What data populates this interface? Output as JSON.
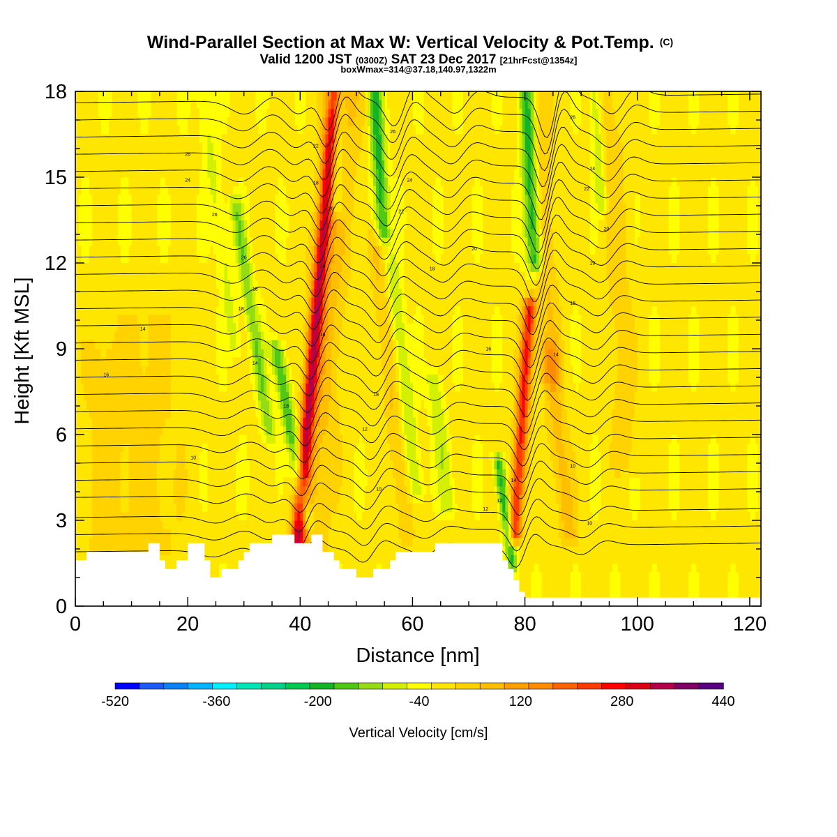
{
  "chart_data": {
    "type": "heatmap",
    "title": "Wind-Parallel Section at Max W: Vertical Velocity & Pot.Temp.",
    "title_mark": "(C)",
    "subtitle_main_a": "Valid 1200 JST ",
    "subtitle_small_a": "(0300Z)",
    "subtitle_main_b": " SAT 23 Dec 2017 ",
    "subtitle_small_b": "[21hrFcst@1354z]",
    "box_info": "boxWmax=314@37.18,140.97,1322m",
    "xlabel": "Distance [nm]",
    "ylabel": "Height [Kft MSL]",
    "xlim": [
      0,
      122
    ],
    "ylim": [
      0,
      18
    ],
    "x_ticks": [
      "0",
      "20",
      "40",
      "60",
      "80",
      "100",
      "120"
    ],
    "y_ticks": [
      "0",
      "3",
      "6",
      "9",
      "12",
      "15",
      "18"
    ],
    "colorbar": {
      "label": "Vertical Velocity [cm/s]",
      "min": -520,
      "max": 440,
      "step": 40,
      "tick_labels": [
        "-520",
        "-360",
        "-200",
        "-40",
        "120",
        "280",
        "440"
      ],
      "colors": [
        "#0000ff",
        "#1e5af5",
        "#0a82f5",
        "#00b4ff",
        "#00f0ff",
        "#00e6b4",
        "#00d28c",
        "#00c850",
        "#14b428",
        "#50c814",
        "#96dc14",
        "#d2f000",
        "#ffff00",
        "#ffe600",
        "#ffd200",
        "#ffbe00",
        "#ffa000",
        "#ff8c00",
        "#ff6400",
        "#ff3c00",
        "#ff0000",
        "#dc0014",
        "#b4004b",
        "#820064",
        "#5a0082"
      ]
    },
    "vertical_velocity_features": [
      {
        "x": 42.8,
        "peak": 300,
        "width": 1.2,
        "z_top": 18,
        "z_bottom": 1.8,
        "tilt": -0.42
      },
      {
        "x": 44.5,
        "peak": 90,
        "width": 3.5,
        "z_top": 18,
        "z_bottom": 1.8,
        "tilt": -0.4
      },
      {
        "x": 46.5,
        "peak": -130,
        "width": 1.2,
        "z_top": 18,
        "z_bottom": 14.0,
        "tilt": 0
      },
      {
        "x": 38.5,
        "peak": -170,
        "width": 1.3,
        "z_top": 9.0,
        "z_bottom": 3.0,
        "tilt": 0.9
      },
      {
        "x": 31.5,
        "peak": -120,
        "width": 1.2,
        "z_top": 14.0,
        "z_bottom": 6.0,
        "tilt": 0.75
      },
      {
        "x": 25.5,
        "peak": -60,
        "width": 1.3,
        "z_top": 18,
        "z_bottom": 9.0,
        "tilt": 0.65
      },
      {
        "x": 54.0,
        "peak": -190,
        "width": 1.3,
        "z_top": 18,
        "z_bottom": 13.0,
        "tilt": 0.3
      },
      {
        "x": 58.5,
        "peak": -90,
        "width": 1.3,
        "z_top": 12.0,
        "z_bottom": 4.0,
        "tilt": 0.55
      },
      {
        "x": 56.0,
        "peak": 70,
        "width": 1.5,
        "z_top": 13.0,
        "z_bottom": 2.5,
        "tilt": 0.55
      },
      {
        "x": 65.0,
        "peak": -80,
        "width": 1.4,
        "z_top": 8.0,
        "z_bottom": 3.5,
        "tilt": 0.6
      },
      {
        "x": 76.5,
        "peak": -190,
        "width": 1.0,
        "z_top": 5.0,
        "z_bottom": 1.5,
        "tilt": 0.7
      },
      {
        "x": 79.5,
        "peak": 280,
        "width": 1.2,
        "z_top": 10.5,
        "z_bottom": 2.5,
        "tilt": -0.35
      },
      {
        "x": 81.0,
        "peak": -210,
        "width": 1.4,
        "z_top": 18,
        "z_bottom": 12.0,
        "tilt": 0.25
      },
      {
        "x": 83.5,
        "peak": 70,
        "width": 2.0,
        "z_top": 18,
        "z_bottom": 8.0,
        "tilt": 0.25
      },
      {
        "x": 86.0,
        "peak": 90,
        "width": 1.8,
        "z_top": 9.0,
        "z_bottom": 2.5,
        "tilt": 0.55
      },
      {
        "x": 93.0,
        "peak": -90,
        "width": 1.0,
        "z_top": 18,
        "z_bottom": 14.0,
        "tilt": 0.3
      },
      {
        "x": 96.5,
        "peak": 50,
        "width": 2.5,
        "z_top": 18,
        "z_bottom": 5.0,
        "tilt": 0.2
      },
      {
        "x": 13.0,
        "peak": 45,
        "width": 6.0,
        "z_top": 10.0,
        "z_bottom": 2.0,
        "tilt": 0.1
      },
      {
        "x": 5.0,
        "peak": 40,
        "width": 4.0,
        "z_top": 9.0,
        "z_bottom": 2.0,
        "tilt": 0
      }
    ],
    "terrain_profile": [
      [
        0,
        1.6
      ],
      [
        1,
        1.6
      ],
      [
        2,
        1.9
      ],
      [
        12,
        1.9
      ],
      [
        13,
        2.2
      ],
      [
        14,
        2.2
      ],
      [
        15,
        1.6
      ],
      [
        16,
        1.3
      ],
      [
        17,
        1.3
      ],
      [
        18,
        1.6
      ],
      [
        19,
        1.6
      ],
      [
        20,
        2.2
      ],
      [
        22,
        2.2
      ],
      [
        23,
        1.6
      ],
      [
        24,
        1.0
      ],
      [
        25,
        1.0
      ],
      [
        26,
        1.3
      ],
      [
        28,
        1.3
      ],
      [
        29,
        1.6
      ],
      [
        30,
        1.9
      ],
      [
        31,
        2.2
      ],
      [
        34,
        2.2
      ],
      [
        35,
        2.5
      ],
      [
        38,
        2.5
      ],
      [
        39,
        2.2
      ],
      [
        41,
        2.2
      ],
      [
        42,
        2.5
      ],
      [
        43,
        2.5
      ],
      [
        44,
        1.9
      ],
      [
        46,
        1.6
      ],
      [
        47,
        1.3
      ],
      [
        50,
        1.0
      ],
      [
        52,
        1.0
      ],
      [
        53,
        1.3
      ],
      [
        56,
        1.6
      ],
      [
        57,
        1.9
      ],
      [
        63,
        1.9
      ],
      [
        64,
        2.2
      ],
      [
        75,
        2.2
      ],
      [
        76,
        1.6
      ],
      [
        77,
        1.3
      ],
      [
        78,
        0.9
      ],
      [
        79,
        0.5
      ],
      [
        80,
        0.3
      ],
      [
        122,
        0.3
      ]
    ],
    "isentrope_levels": [
      {
        "label": "",
        "z": 1.9
      },
      {
        "label": "",
        "z": 2.5
      },
      {
        "label": "",
        "z": 3.1
      },
      {
        "label": "",
        "z": 3.8
      },
      {
        "label": "",
        "z": 4.4
      },
      {
        "label": "",
        "z": 5.0
      },
      {
        "label": "10",
        "z": 5.6
      },
      {
        "label": "",
        "z": 6.2
      },
      {
        "label": "",
        "z": 6.8
      },
      {
        "label": "",
        "z": 7.4
      },
      {
        "label": "18",
        "z": 8.0
      },
      {
        "label": "",
        "z": 8.6
      },
      {
        "label": "",
        "z": 9.2
      },
      {
        "label": "14",
        "z": 9.8
      },
      {
        "label": "",
        "z": 10.4
      },
      {
        "label": "",
        "z": 11.0
      },
      {
        "label": "",
        "z": 11.6
      },
      {
        "label": "",
        "z": 12.2
      },
      {
        "label": "",
        "z": 12.8
      },
      {
        "label": "",
        "z": 13.4
      },
      {
        "label": "",
        "z": 14.0
      },
      {
        "label": "",
        "z": 14.6
      },
      {
        "label": "",
        "z": 15.2
      },
      {
        "label": "",
        "z": 15.8
      },
      {
        "label": "",
        "z": 16.4
      },
      {
        "label": "",
        "z": 17.0
      },
      {
        "label": "",
        "z": 17.6
      }
    ],
    "contour_labels": [
      {
        "x": 20.0,
        "z": 15.8,
        "text": "26"
      },
      {
        "x": 20.0,
        "z": 14.9,
        "text": "24"
      },
      {
        "x": 24.8,
        "z": 13.7,
        "text": "26"
      },
      {
        "x": 30.0,
        "z": 12.2,
        "text": "26"
      },
      {
        "x": 32.0,
        "z": 11.1,
        "text": "18"
      },
      {
        "x": 29.5,
        "z": 10.4,
        "text": "18"
      },
      {
        "x": 12.0,
        "z": 9.7,
        "text": "14"
      },
      {
        "x": 5.5,
        "z": 8.1,
        "text": "16"
      },
      {
        "x": 32.0,
        "z": 8.5,
        "text": "14"
      },
      {
        "x": 37.5,
        "z": 7.0,
        "text": "18"
      },
      {
        "x": 21.0,
        "z": 5.2,
        "text": "10"
      },
      {
        "x": 42.8,
        "z": 16.1,
        "text": "22"
      },
      {
        "x": 42.8,
        "z": 14.8,
        "text": "18"
      },
      {
        "x": 45.5,
        "z": 13.9,
        "text": "20"
      },
      {
        "x": 44.0,
        "z": 11.9,
        "text": "18"
      },
      {
        "x": 44.0,
        "z": 9.5,
        "text": "16"
      },
      {
        "x": 56.5,
        "z": 16.6,
        "text": "26"
      },
      {
        "x": 59.5,
        "z": 14.9,
        "text": "24"
      },
      {
        "x": 58.0,
        "z": 13.8,
        "text": "22"
      },
      {
        "x": 71.0,
        "z": 12.5,
        "text": "20"
      },
      {
        "x": 63.5,
        "z": 11.8,
        "text": "18"
      },
      {
        "x": 73.5,
        "z": 9.0,
        "text": "16"
      },
      {
        "x": 53.5,
        "z": 7.4,
        "text": "18"
      },
      {
        "x": 51.5,
        "z": 6.2,
        "text": "12"
      },
      {
        "x": 54.0,
        "z": 4.1,
        "text": "10"
      },
      {
        "x": 88.5,
        "z": 17.1,
        "text": "26"
      },
      {
        "x": 92.0,
        "z": 15.3,
        "text": "24"
      },
      {
        "x": 91.0,
        "z": 14.6,
        "text": "22"
      },
      {
        "x": 94.5,
        "z": 13.2,
        "text": "20"
      },
      {
        "x": 92.0,
        "z": 12.0,
        "text": "19"
      },
      {
        "x": 88.5,
        "z": 10.6,
        "text": "16"
      },
      {
        "x": 85.5,
        "z": 8.8,
        "text": "14"
      },
      {
        "x": 78.0,
        "z": 4.4,
        "text": "14"
      },
      {
        "x": 75.5,
        "z": 3.7,
        "text": "12"
      },
      {
        "x": 73.0,
        "z": 3.4,
        "text": "12"
      },
      {
        "x": 88.5,
        "z": 4.9,
        "text": "10"
      },
      {
        "x": 91.5,
        "z": 2.9,
        "text": "10"
      }
    ]
  }
}
